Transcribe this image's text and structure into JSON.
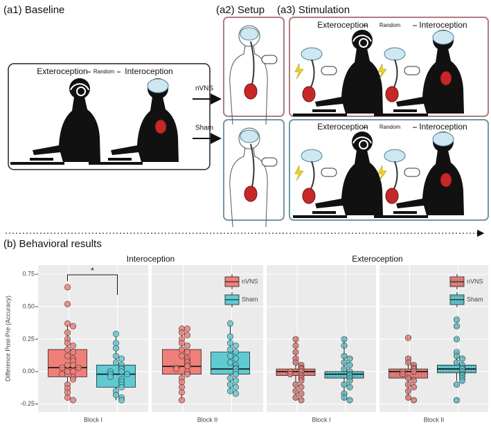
{
  "figure": {
    "a1": {
      "label": "(a1) Baseline",
      "left": "Exteroception",
      "mid": "Random",
      "right": "Interoception"
    },
    "arrows": [
      "nVNS",
      "Sham"
    ],
    "a2": {
      "label": "(a2) Setup"
    },
    "a3": {
      "label": "(a3) Stimulation",
      "top": {
        "left": "Exteroception",
        "mid": "Random",
        "right": "Interoception"
      },
      "bottom": {
        "left": "Exteroception",
        "mid": "Random",
        "right": "Interoception"
      }
    },
    "b": {
      "label": "(b) Behavioral  results"
    }
  },
  "chart_data": [
    {
      "type": "box",
      "title": "Interoception",
      "ylabel": "Difference Post-Pre (Accuracy)",
      "categories": [
        "Block I",
        "Block II"
      ],
      "annotation": "*",
      "ylim": [
        -0.31,
        0.82
      ],
      "yticks": [
        -0.25,
        {
          "value": 0,
          "label": "0.00"
        },
        0.25,
        {
          "value": 0.5,
          "label": "0.50"
        },
        0.75
      ],
      "grid": true,
      "hatched": false,
      "series": [
        {
          "name": "nVNS",
          "color": "#f07f7a",
          "low": [
            -0.22,
            -0.22
          ],
          "q1": [
            -0.04,
            -0.02
          ],
          "median": [
            0.03,
            0.04
          ],
          "q3": [
            0.17,
            0.17
          ],
          "high": [
            0.37,
            0.33
          ],
          "points": [
            [
              0.65,
              0.52,
              0.37,
              0.35,
              0.3,
              0.25,
              0.22,
              0.2,
              0.17,
              0.15,
              0.12,
              0.1,
              0.08,
              0.05,
              0.05,
              0.03,
              0.03,
              0.0,
              0.0,
              -0.02,
              -0.04,
              -0.06,
              -0.1,
              -0.13,
              -0.16,
              -0.2,
              -0.22
            ],
            [
              0.33,
              0.33,
              0.3,
              0.28,
              0.25,
              0.22,
              0.2,
              0.17,
              0.15,
              0.12,
              0.1,
              0.08,
              0.07,
              0.05,
              0.04,
              0.03,
              0.02,
              0.0,
              -0.02,
              -0.05,
              -0.08,
              -0.12,
              -0.16,
              -0.22
            ]
          ]
        },
        {
          "name": "Sham",
          "color": "#5ecbd3",
          "low": [
            -0.22,
            -0.17
          ],
          "q1": [
            -0.12,
            -0.02
          ],
          "median": [
            -0.02,
            0.02
          ],
          "q3": [
            0.05,
            0.15
          ],
          "high": [
            0.29,
            0.37
          ],
          "points": [
            [
              0.29,
              0.22,
              0.18,
              0.12,
              0.1,
              0.07,
              0.05,
              0.03,
              0.02,
              0.0,
              0.0,
              -0.02,
              -0.02,
              -0.04,
              -0.06,
              -0.08,
              -0.1,
              -0.12,
              -0.15,
              -0.18,
              -0.2,
              -0.22
            ],
            [
              0.37,
              0.27,
              0.22,
              0.2,
              0.17,
              0.15,
              0.12,
              0.1,
              0.07,
              0.05,
              0.03,
              0.02,
              0.0,
              -0.02,
              -0.05,
              -0.07,
              -0.1,
              -0.12,
              -0.15,
              -0.17
            ]
          ]
        }
      ]
    },
    {
      "type": "box",
      "title": "Exteroception",
      "categories": [
        "Block I",
        "Block II"
      ],
      "grid": true,
      "hatched": true,
      "series": [
        {
          "name": "nVNS",
          "color": "#f07f7a",
          "low": [
            -0.22,
            -0.22
          ],
          "q1": [
            -0.03,
            -0.05
          ],
          "median": [
            0.0,
            0.0
          ],
          "q3": [
            0.02,
            0.02
          ],
          "high": [
            0.25,
            0.1
          ],
          "points": [
            [
              0.25,
              0.2,
              0.15,
              0.1,
              0.07,
              0.05,
              0.03,
              0.02,
              0.0,
              0.0,
              -0.02,
              -0.03,
              -0.05,
              -0.07,
              -0.1,
              -0.12,
              -0.15,
              -0.17,
              -0.2,
              -0.22
            ],
            [
              0.26,
              0.1,
              0.07,
              0.05,
              0.03,
              0.02,
              0.0,
              0.0,
              -0.02,
              -0.05,
              -0.07,
              -0.1,
              -0.12,
              -0.15,
              -0.2,
              -0.22
            ]
          ]
        },
        {
          "name": "Sham",
          "color": "#5ecbd3",
          "low": [
            -0.22,
            -0.07
          ],
          "q1": [
            -0.05,
            -0.01
          ],
          "median": [
            -0.02,
            0.02
          ],
          "q3": [
            0.0,
            0.05
          ],
          "high": [
            0.25,
            0.15
          ],
          "points": [
            [
              0.25,
              0.2,
              0.12,
              0.1,
              0.07,
              0.05,
              0.02,
              0.0,
              -0.02,
              -0.03,
              -0.05,
              -0.07,
              -0.1,
              -0.12,
              -0.17,
              -0.2,
              -0.22
            ],
            [
              0.4,
              0.35,
              0.25,
              0.15,
              0.12,
              0.1,
              0.07,
              0.05,
              0.03,
              0.02,
              0.0,
              -0.02,
              -0.03,
              -0.05,
              -0.07,
              -0.1,
              -0.22
            ]
          ]
        }
      ]
    }
  ]
}
